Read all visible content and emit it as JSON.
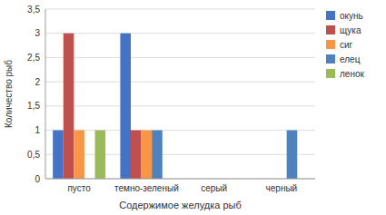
{
  "chart_data": {
    "type": "bar",
    "categories": [
      "пусто",
      "темно-зеленый",
      "серый",
      "черный"
    ],
    "series": [
      {
        "name": "окунь",
        "color": "#4472C4",
        "values": [
          1,
          3,
          0,
          0
        ]
      },
      {
        "name": "щука",
        "color": "#C0504D",
        "values": [
          3,
          1,
          0,
          0
        ]
      },
      {
        "name": "сиг",
        "color": "#F79646",
        "values": [
          1,
          1,
          0,
          0
        ]
      },
      {
        "name": "елец",
        "color": "#4F81BD",
        "values": [
          0,
          1,
          0,
          1
        ]
      },
      {
        "name": "ленок",
        "color": "#9BBB59",
        "values": [
          1,
          0,
          0,
          0
        ]
      }
    ],
    "xlabel": "Содержимое желудка рыб",
    "ylabel": "Количество рыб",
    "ylim": [
      0,
      3.5
    ],
    "yticks": [
      0,
      {
        "value": 0.5,
        "label": "0,5"
      },
      1,
      {
        "value": 1.5,
        "label": "1,5"
      },
      2,
      {
        "value": 2.5,
        "label": "2,5"
      },
      3,
      {
        "value": 3.5,
        "label": "3,5"
      }
    ],
    "grid": true,
    "legend": "right"
  }
}
